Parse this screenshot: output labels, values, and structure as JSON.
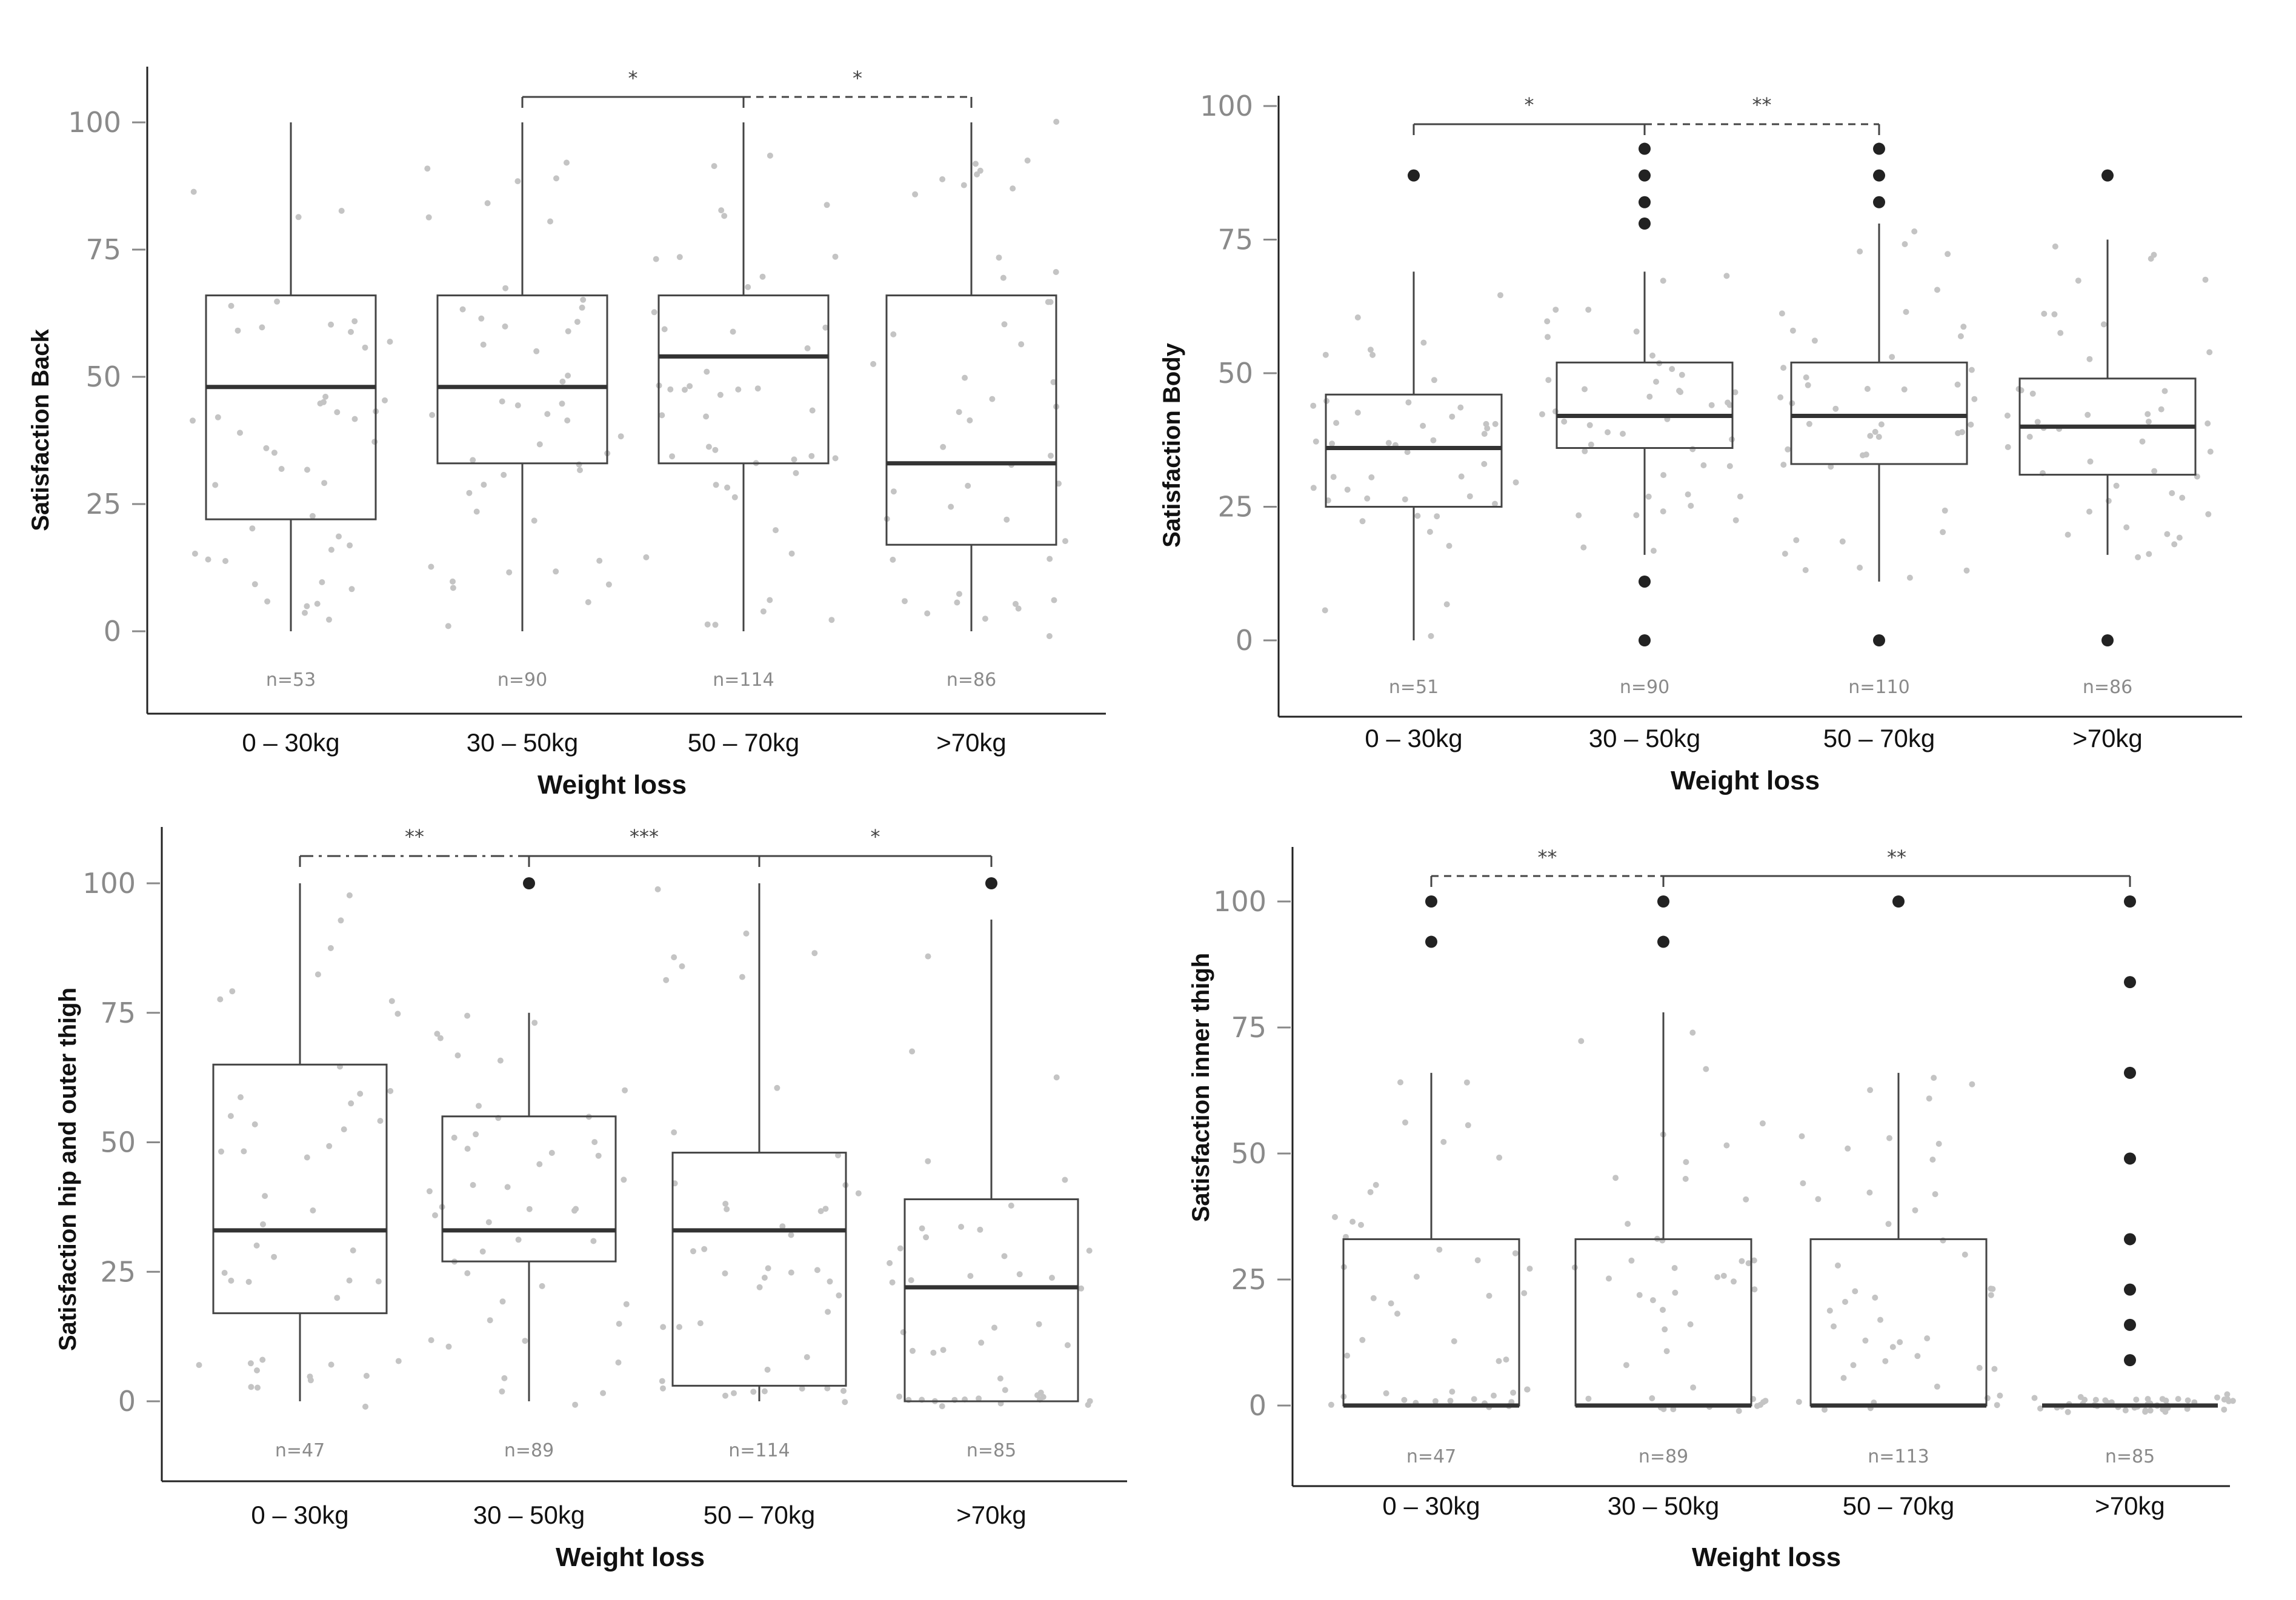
{
  "chart_data": [
    {
      "type": "boxplot",
      "panel": "top-left",
      "xlabel": "Weight loss",
      "ylabel": "Satisfaction Back",
      "ylim": [
        -13,
        110
      ],
      "yticks": [
        0,
        25,
        50,
        75,
        100
      ],
      "categories": [
        "0 – 30kg",
        "30 – 50kg",
        "50 – 70kg",
        ">70kg"
      ],
      "n_labels": [
        "n=53",
        "n=90",
        "n=114",
        "n=86"
      ],
      "boxes": [
        {
          "whisker_low": 0,
          "q1": 22,
          "median": 48,
          "q3": 66,
          "whisker_high": 100,
          "outliers": []
        },
        {
          "whisker_low": 0,
          "q1": 33,
          "median": 48,
          "q3": 66,
          "whisker_high": 100,
          "outliers": []
        },
        {
          "whisker_low": 0,
          "q1": 33,
          "median": 54,
          "q3": 66,
          "whisker_high": 100,
          "outliers": []
        },
        {
          "whisker_low": 0,
          "q1": 17,
          "median": 33,
          "q3": 66,
          "whisker_high": 100,
          "outliers": []
        }
      ],
      "brackets": [
        {
          "from": 1,
          "to": 2,
          "label": "*",
          "style": "solid"
        },
        {
          "from": 2,
          "to": 3,
          "label": "*",
          "style": "dashed"
        }
      ]
    },
    {
      "type": "boxplot",
      "panel": "top-right",
      "xlabel": "Weight loss",
      "ylabel": "Satisfaction Body",
      "ylim": [
        -15,
        102
      ],
      "yticks": [
        0,
        25,
        50,
        75,
        100
      ],
      "categories": [
        "0 – 30kg",
        "30 – 50kg",
        "50 – 70kg",
        ">70kg"
      ],
      "n_labels": [
        "n=51",
        "n=90",
        "n=110",
        "n=86"
      ],
      "boxes": [
        {
          "whisker_low": 0,
          "q1": 25,
          "median": 36,
          "q3": 46,
          "whisker_high": 69,
          "outliers": [
            87
          ]
        },
        {
          "whisker_low": 16,
          "q1": 36,
          "median": 42,
          "q3": 52,
          "whisker_high": 69,
          "outliers": [
            0,
            11,
            78,
            82,
            87,
            92
          ]
        },
        {
          "whisker_low": 11,
          "q1": 33,
          "median": 42,
          "q3": 52,
          "whisker_high": 78,
          "outliers": [
            0,
            82,
            87,
            92
          ]
        },
        {
          "whisker_low": 16,
          "q1": 31,
          "median": 40,
          "q3": 49,
          "whisker_high": 75,
          "outliers": [
            0,
            87
          ]
        }
      ],
      "brackets": [
        {
          "from": 0,
          "to": 1,
          "label": "*",
          "style": "solid"
        },
        {
          "from": 1,
          "to": 2,
          "label": "**",
          "style": "dashed"
        }
      ]
    },
    {
      "type": "boxplot",
      "panel": "bottom-left",
      "xlabel": "Weight loss",
      "ylabel": "Satisfaction hip and outer thigh",
      "ylim": [
        -15,
        110
      ],
      "yticks": [
        0,
        25,
        50,
        75,
        100
      ],
      "categories": [
        "0 – 30kg",
        "30 – 50kg",
        "50 – 70kg",
        ">70kg"
      ],
      "n_labels": [
        "n=47",
        "n=89",
        "n=114",
        "n=85"
      ],
      "boxes": [
        {
          "whisker_low": 0,
          "q1": 17,
          "median": 33,
          "q3": 65,
          "whisker_high": 100,
          "outliers": []
        },
        {
          "whisker_low": 0,
          "q1": 27,
          "median": 33,
          "q3": 55,
          "whisker_high": 75,
          "outliers": [
            100
          ]
        },
        {
          "whisker_low": 0,
          "q1": 3,
          "median": 33,
          "q3": 48,
          "whisker_high": 100,
          "outliers": []
        },
        {
          "whisker_low": 0,
          "q1": 0,
          "median": 22,
          "q3": 39,
          "whisker_high": 93,
          "outliers": [
            100
          ]
        }
      ],
      "brackets": [
        {
          "from": 0,
          "to": 1,
          "label": "**",
          "style": "dashdot"
        },
        {
          "from": 1,
          "to": 2,
          "label": "***",
          "style": "solid"
        },
        {
          "from": 2,
          "to": 3,
          "label": "*",
          "style": "solid"
        }
      ]
    },
    {
      "type": "boxplot",
      "panel": "bottom-right",
      "xlabel": "Weight loss",
      "ylabel": "Satisfaction inner thigh",
      "ylim": [
        -15,
        110
      ],
      "yticks": [
        0,
        25,
        50,
        75,
        100
      ],
      "categories": [
        "0 – 30kg",
        "30 – 50kg",
        "50 – 70kg",
        ">70kg"
      ],
      "n_labels": [
        "n=47",
        "n=89",
        "n=113",
        "n=85"
      ],
      "boxes": [
        {
          "whisker_low": 0,
          "q1": 0,
          "median": 0,
          "q3": 33,
          "whisker_high": 66,
          "outliers": [
            92,
            100
          ]
        },
        {
          "whisker_low": 0,
          "q1": 0,
          "median": 0,
          "q3": 33,
          "whisker_high": 78,
          "outliers": [
            92,
            100
          ]
        },
        {
          "whisker_low": 0,
          "q1": 0,
          "median": 0,
          "q3": 33,
          "whisker_high": 66,
          "outliers": [
            100
          ]
        },
        {
          "whisker_low": 0,
          "q1": 0,
          "median": 0,
          "q3": 0,
          "whisker_high": 0,
          "outliers": [
            9,
            16,
            23,
            33,
            49,
            66,
            84,
            100
          ]
        }
      ],
      "brackets": [
        {
          "from": 0,
          "to": 1,
          "label": "**",
          "style": "dashed"
        },
        {
          "from": 1,
          "to": 3,
          "label": "**",
          "style": "solid"
        }
      ]
    }
  ]
}
